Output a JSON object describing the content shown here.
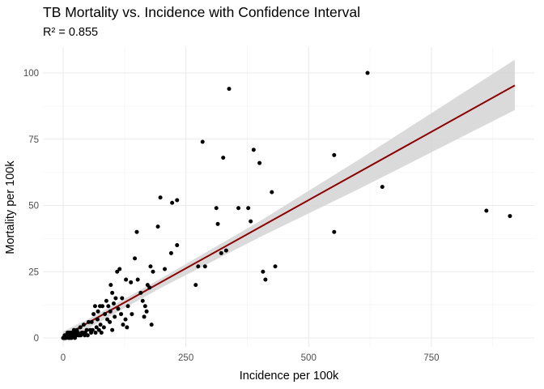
{
  "chart_data": {
    "type": "scatter",
    "title": "TB Mortality vs. Incidence with Confidence Interval",
    "subtitle": "R² = 0.855",
    "xlabel": "Incidence per 100k",
    "ylabel": "Mortality per 100k",
    "xlim": [
      0,
      920
    ],
    "ylim": [
      -3,
      105
    ],
    "xticks": [
      0,
      250,
      500,
      750
    ],
    "xtick_labels": [
      "0",
      "250",
      "500",
      "750"
    ],
    "yticks": [
      0,
      25,
      50,
      75,
      100
    ],
    "ytick_labels": [
      "0",
      "25",
      "50",
      "75",
      "100"
    ],
    "grid": true,
    "colors": {
      "points": "#000000",
      "fit_line": "#8b0000",
      "confidence_band": "#d3d3d3",
      "grid_major": "#ebebeb",
      "grid_minor": "#f5f5f5",
      "tick_text": "#4d4d4d"
    },
    "regression": {
      "x_start": 0,
      "y_start": 0.5,
      "x_end": 920,
      "y_end": 95.3,
      "band_lower": [
        [
          0,
          -1.5
        ],
        [
          50,
          3.5
        ],
        [
          200,
          19
        ],
        [
          400,
          38
        ],
        [
          600,
          56
        ],
        [
          920,
          86
        ]
      ],
      "band_upper": [
        [
          0,
          2.5
        ],
        [
          50,
          7
        ],
        [
          200,
          22.5
        ],
        [
          400,
          44
        ],
        [
          600,
          67
        ],
        [
          920,
          105
        ]
      ]
    },
    "points": [
      [
        620,
        100
      ],
      [
        338,
        94
      ],
      [
        284,
        74
      ],
      [
        388,
        71
      ],
      [
        552,
        69
      ],
      [
        326,
        68
      ],
      [
        400,
        66
      ],
      [
        650,
        57
      ],
      [
        425,
        55
      ],
      [
        198,
        53
      ],
      [
        232,
        52
      ],
      [
        222,
        51
      ],
      [
        312,
        49
      ],
      [
        357,
        49
      ],
      [
        377,
        49
      ],
      [
        862,
        48
      ],
      [
        910,
        46
      ],
      [
        382,
        44
      ],
      [
        315,
        43
      ],
      [
        193,
        42
      ],
      [
        552,
        40
      ],
      [
        150,
        40
      ],
      [
        332,
        33
      ],
      [
        407,
        25
      ],
      [
        412,
        22
      ],
      [
        432,
        27
      ],
      [
        322,
        32
      ],
      [
        289,
        27
      ],
      [
        275,
        27
      ],
      [
        270,
        20
      ],
      [
        232,
        35
      ],
      [
        220,
        32
      ],
      [
        207,
        26
      ],
      [
        178,
        27
      ],
      [
        183,
        25
      ],
      [
        172,
        20
      ],
      [
        176,
        19
      ],
      [
        146,
        30
      ],
      [
        115,
        26
      ],
      [
        110,
        25
      ],
      [
        128,
        22
      ],
      [
        138,
        21
      ],
      [
        152,
        22
      ],
      [
        158,
        17
      ],
      [
        162,
        14
      ],
      [
        167,
        12
      ],
      [
        170,
        10
      ],
      [
        165,
        8
      ],
      [
        180,
        5
      ],
      [
        97,
        20
      ],
      [
        100,
        17
      ],
      [
        107,
        15
      ],
      [
        120,
        15
      ],
      [
        132,
        12
      ],
      [
        140,
        9
      ],
      [
        127,
        7
      ],
      [
        122,
        5
      ],
      [
        130,
        4
      ],
      [
        88,
        14
      ],
      [
        92,
        12
      ],
      [
        80,
        12
      ],
      [
        75,
        12
      ],
      [
        71,
        10
      ],
      [
        65,
        12
      ],
      [
        62,
        9
      ],
      [
        58,
        6
      ],
      [
        55,
        3
      ],
      [
        85,
        9
      ],
      [
        90,
        7
      ],
      [
        95,
        6
      ],
      [
        100,
        3
      ],
      [
        105,
        8
      ],
      [
        112,
        11
      ],
      [
        83,
        4
      ],
      [
        76,
        5
      ],
      [
        70,
        7
      ],
      [
        68,
        4
      ],
      [
        52,
        6
      ],
      [
        48,
        3
      ],
      [
        45,
        2
      ],
      [
        42,
        5
      ],
      [
        40,
        2
      ],
      [
        38,
        2
      ],
      [
        35,
        4
      ],
      [
        33,
        1
      ],
      [
        30,
        2
      ],
      [
        28,
        3
      ],
      [
        26,
        1
      ],
      [
        25,
        2
      ],
      [
        23,
        1
      ],
      [
        22,
        3
      ],
      [
        20,
        2
      ],
      [
        18,
        1
      ],
      [
        16,
        2
      ],
      [
        15,
        1
      ],
      [
        13,
        1
      ],
      [
        12,
        2
      ],
      [
        10,
        1
      ],
      [
        9,
        2
      ],
      [
        8,
        1
      ],
      [
        7,
        1
      ],
      [
        6,
        0
      ],
      [
        5,
        1
      ],
      [
        4,
        0
      ],
      [
        3,
        1
      ],
      [
        2,
        0
      ],
      [
        1,
        0
      ],
      [
        0,
        0
      ],
      [
        11,
        0
      ],
      [
        14,
        0
      ],
      [
        17,
        0
      ],
      [
        19,
        1
      ],
      [
        24,
        0
      ],
      [
        27,
        1
      ],
      [
        31,
        1
      ],
      [
        36,
        1
      ],
      [
        44,
        1
      ],
      [
        50,
        1
      ],
      [
        57,
        2
      ],
      [
        60,
        3
      ],
      [
        66,
        2
      ],
      [
        73,
        3
      ],
      [
        78,
        2
      ],
      [
        96,
        10
      ],
      [
        103,
        13
      ],
      [
        118,
        9
      ]
    ]
  }
}
